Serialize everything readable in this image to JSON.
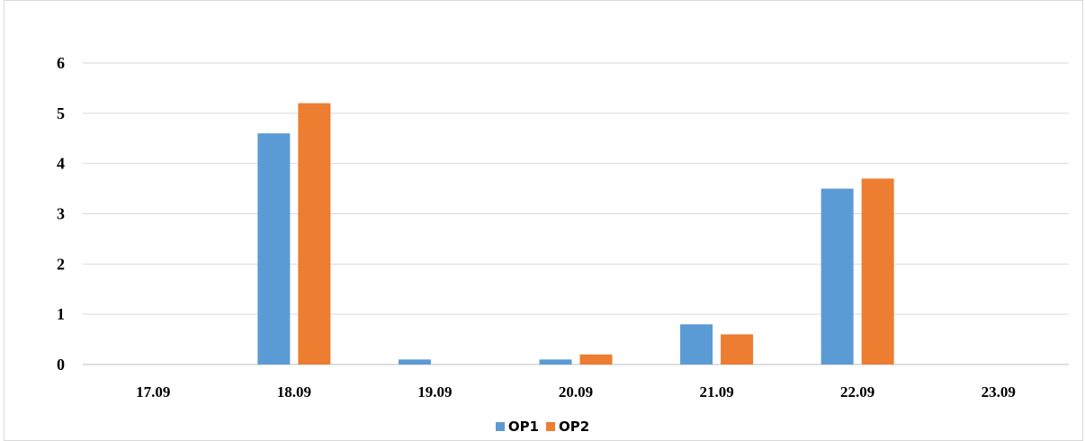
{
  "chart_data": {
    "type": "bar",
    "categories": [
      "17.09",
      "18.09",
      "19.09",
      "20.09",
      "21.09",
      "22.09",
      "23.09"
    ],
    "series": [
      {
        "name": "OP1",
        "color": "#5B9BD5",
        "values": [
          0,
          4.6,
          0.1,
          0.1,
          0.8,
          3.5,
          0
        ]
      },
      {
        "name": "OP2",
        "color": "#ED7D31",
        "values": [
          0,
          5.2,
          0,
          0.2,
          0.6,
          3.7,
          0
        ]
      }
    ],
    "y_ticks": [
      "0",
      "1",
      "2",
      "3",
      "4",
      "5",
      "6"
    ],
    "ylim": [
      0,
      6
    ],
    "grid": true,
    "legend_position": "bottom",
    "title": "",
    "xlabel": "",
    "ylabel": ""
  }
}
